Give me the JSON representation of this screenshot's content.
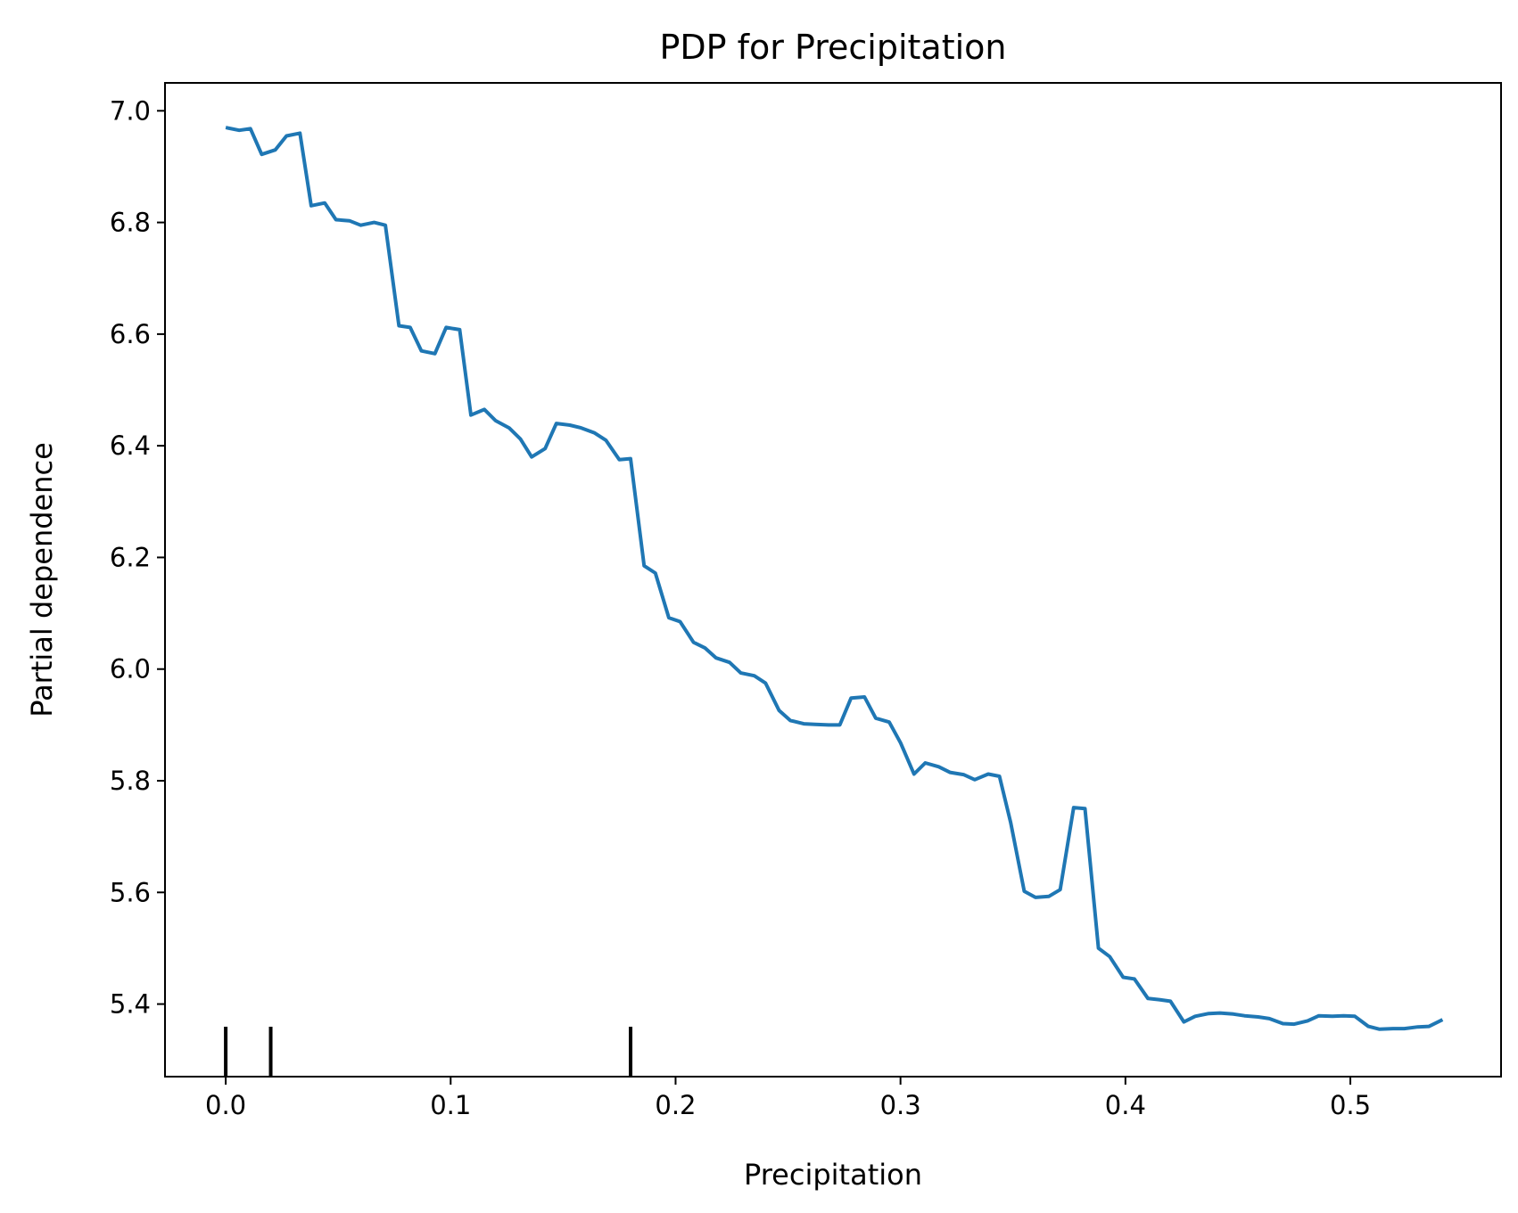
{
  "chart_data": {
    "type": "line",
    "title": "PDP for Precipitation",
    "xlabel": "Precipitation",
    "ylabel": "Partial dependence",
    "xlim": [
      -0.027,
      0.567
    ],
    "ylim": [
      5.27,
      7.05
    ],
    "grid": false,
    "legend": "none",
    "xticks": [
      0.0,
      0.1,
      0.2,
      0.3,
      0.4,
      0.5
    ],
    "xtick_labels": [
      "0.0",
      "0.1",
      "0.2",
      "0.3",
      "0.4",
      "0.5"
    ],
    "yticks": [
      5.4,
      5.6,
      5.8,
      6.0,
      6.2,
      6.4,
      6.6,
      6.8,
      7.0
    ],
    "ytick_labels": [
      "5.4",
      "5.6",
      "5.8",
      "6.0",
      "6.2",
      "6.4",
      "6.6",
      "6.8",
      "7.0"
    ],
    "line_color": "#1f77b4",
    "rug_color": "#000000",
    "deciles": [
      0.0,
      0.02,
      0.18
    ],
    "x": [
      0.0,
      0.006,
      0.011,
      0.016,
      0.022,
      0.027,
      0.033,
      0.038,
      0.044,
      0.049,
      0.055,
      0.06,
      0.066,
      0.071,
      0.077,
      0.082,
      0.087,
      0.093,
      0.098,
      0.104,
      0.109,
      0.115,
      0.12,
      0.126,
      0.131,
      0.136,
      0.142,
      0.147,
      0.153,
      0.158,
      0.164,
      0.169,
      0.175,
      0.18,
      0.186,
      0.191,
      0.197,
      0.202,
      0.208,
      0.213,
      0.218,
      0.224,
      0.229,
      0.235,
      0.24,
      0.246,
      0.251,
      0.257,
      0.262,
      0.268,
      0.273,
      0.278,
      0.284,
      0.289,
      0.295,
      0.3,
      0.306,
      0.311,
      0.317,
      0.322,
      0.328,
      0.333,
      0.339,
      0.344,
      0.349,
      0.355,
      0.36,
      0.366,
      0.371,
      0.377,
      0.382,
      0.388,
      0.393,
      0.399,
      0.404,
      0.41,
      0.415,
      0.42,
      0.426,
      0.431,
      0.437,
      0.442,
      0.448,
      0.453,
      0.459,
      0.464,
      0.47,
      0.475,
      0.481,
      0.486,
      0.492,
      0.497,
      0.502,
      0.508,
      0.513,
      0.519,
      0.524,
      0.53,
      0.535,
      0.541
    ],
    "y": [
      6.97,
      6.965,
      6.968,
      6.922,
      6.93,
      6.955,
      6.96,
      6.83,
      6.835,
      6.805,
      6.803,
      6.795,
      6.8,
      6.795,
      6.615,
      6.612,
      6.57,
      6.565,
      6.612,
      6.608,
      6.455,
      6.465,
      6.445,
      6.432,
      6.412,
      6.38,
      6.395,
      6.44,
      6.437,
      6.432,
      6.423,
      6.41,
      6.375,
      6.377,
      6.185,
      6.172,
      6.092,
      6.085,
      6.048,
      6.038,
      6.02,
      6.012,
      5.993,
      5.988,
      5.975,
      5.926,
      5.908,
      5.902,
      5.901,
      5.9,
      5.9,
      5.948,
      5.95,
      5.912,
      5.905,
      5.868,
      5.812,
      5.832,
      5.825,
      5.815,
      5.811,
      5.802,
      5.812,
      5.808,
      5.725,
      5.602,
      5.591,
      5.593,
      5.605,
      5.752,
      5.75,
      5.5,
      5.485,
      5.448,
      5.445,
      5.41,
      5.408,
      5.405,
      5.368,
      5.378,
      5.383,
      5.384,
      5.382,
      5.379,
      5.377,
      5.374,
      5.365,
      5.364,
      5.37,
      5.379,
      5.378,
      5.379,
      5.378,
      5.36,
      5.355,
      5.356,
      5.356,
      5.359,
      5.36,
      5.372
    ]
  }
}
